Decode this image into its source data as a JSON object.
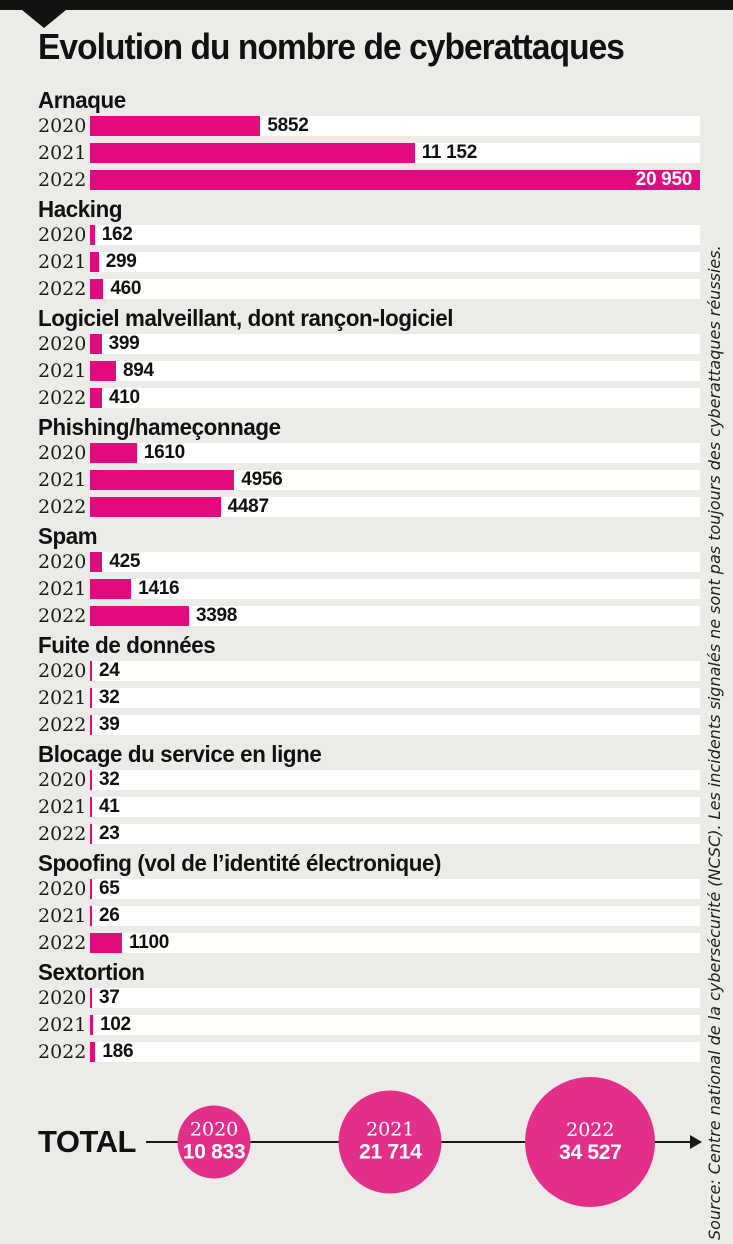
{
  "colors": {
    "accent": "#e20a7e",
    "circle_fill": "#e2308a",
    "background": "#ecebe8",
    "track": "#ffffff",
    "ink": "#131313"
  },
  "source": "Source: Centre national de la cybersécurité (NCSC). Les incidents signalés ne sont pas toujours des cyberattaques réussies.",
  "chart_data": {
    "type": "bar",
    "orientation": "horizontal",
    "title": "Evolution du nombre de cyberattaques",
    "years": [
      "2020",
      "2021",
      "2022"
    ],
    "max_value": 20950,
    "value_scale_note": "bar lengths share one scale; 20950 = full track width",
    "groups": [
      {
        "category": "Arnaque",
        "values": [
          5852,
          11152,
          20950
        ],
        "labels": [
          "5852",
          "11 152",
          "20 950"
        ]
      },
      {
        "category": "Hacking",
        "values": [
          162,
          299,
          460
        ],
        "labels": [
          "162",
          "299",
          "460"
        ]
      },
      {
        "category": "Logiciel malveillant, dont rançon-logiciel",
        "values": [
          399,
          894,
          410
        ],
        "labels": [
          "399",
          "894",
          "410"
        ]
      },
      {
        "category": "Phishing/hameçonnage",
        "values": [
          1610,
          4956,
          4487
        ],
        "labels": [
          "1610",
          "4956",
          "4487"
        ]
      },
      {
        "category": "Spam",
        "values": [
          425,
          1416,
          3398
        ],
        "labels": [
          "425",
          "1416",
          "3398"
        ]
      },
      {
        "category": "Fuite de données",
        "values": [
          24,
          32,
          39
        ],
        "labels": [
          "24",
          "32",
          "39"
        ]
      },
      {
        "category": "Blocage du service en ligne",
        "values": [
          32,
          41,
          23
        ],
        "labels": [
          "32",
          "41",
          "23"
        ]
      },
      {
        "category": "Spoofing (vol de l’identité électronique)",
        "values": [
          65,
          26,
          1100
        ],
        "labels": [
          "65",
          "26",
          "1100"
        ]
      },
      {
        "category": "Sextortion",
        "values": [
          37,
          102,
          186
        ],
        "labels": [
          "37",
          "102",
          "186"
        ]
      }
    ],
    "total": {
      "label": "TOTAL",
      "items": [
        {
          "year": "2020",
          "value": 10833,
          "label": "10 833"
        },
        {
          "year": "2021",
          "value": 21714,
          "label": "21 714"
        },
        {
          "year": "2022",
          "value": 34527,
          "label": "34 527"
        }
      ]
    }
  }
}
